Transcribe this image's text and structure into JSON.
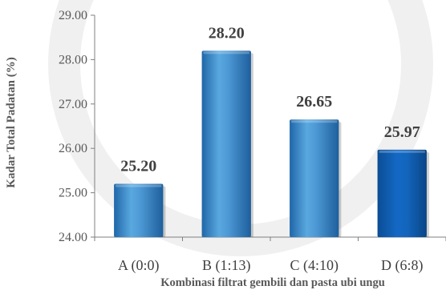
{
  "chart_data": {
    "type": "bar",
    "title": "",
    "xlabel": "Kombinasi filtrat gembili dan pasta ubi ungu",
    "ylabel": "Kadar Total Padatan (%)",
    "ylim": [
      24.0,
      29.0
    ],
    "yticks": [
      "24.00",
      "25.00",
      "26.00",
      "27.00",
      "28.00",
      "29.00"
    ],
    "grid": false,
    "legend": "none",
    "categories": [
      "A (0:0)",
      "B (1:13)",
      "C (4:10)",
      "D (6:8)"
    ],
    "values": [
      25.2,
      28.2,
      26.65,
      25.97
    ],
    "data_labels": [
      "25.20",
      "28.20",
      "26.65",
      "25.97"
    ],
    "colors": {
      "bar_light": "#5AA8E0",
      "bar_main": "#2F7BC0",
      "bar_dark": "#1A5A96",
      "highlight_bar": "#0E5AAE",
      "axis": "#7f7f7f",
      "text": "#595959",
      "data_label": "#404040"
    }
  }
}
